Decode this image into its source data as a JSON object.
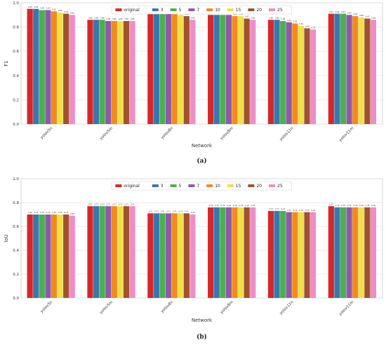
{
  "chart_data": [
    {
      "type": "bar",
      "panel_label": "(a)",
      "xlabel": "Network",
      "ylabel": "F1",
      "ylim": [
        0.0,
        1.0
      ],
      "yticks": [
        0.0,
        0.2,
        0.4,
        0.6,
        0.8,
        1.0
      ],
      "grid": true,
      "legend_position": "top-center",
      "categories": [
        "yolov5n",
        "yolov5m",
        "yolov8n",
        "yolov8m",
        "yolov11n",
        "yolov11m"
      ],
      "series": [
        {
          "name": "original",
          "color": "#d62728",
          "values": [
            0.95,
            0.86,
            0.92,
            0.9,
            0.86,
            0.91
          ],
          "labels": [
            "0.95",
            "0.86",
            "0.92",
            "0.90",
            "0.86",
            "0.91"
          ]
        },
        {
          "name": "3",
          "color": "#3a76b0",
          "values": [
            0.95,
            0.86,
            0.92,
            0.9,
            0.86,
            0.91
          ],
          "labels": [
            "0.95",
            "0.86",
            "0.92",
            "0.90",
            "0.86",
            "0.91"
          ]
        },
        {
          "name": "5",
          "color": "#4caf50",
          "values": [
            0.94,
            0.86,
            0.92,
            0.9,
            0.85,
            0.91
          ],
          "labels": [
            "0.94",
            "0.86",
            "0.92",
            "0.90",
            "0.85",
            "0.91"
          ]
        },
        {
          "name": "7",
          "color": "#8e5aa8",
          "values": [
            0.94,
            0.85,
            0.91,
            0.9,
            0.84,
            0.9
          ],
          "labels": [
            "0.94",
            "0.85",
            "0.91",
            "0.90",
            "0.84",
            "0.90"
          ]
        },
        {
          "name": "10",
          "color": "#f28a1e",
          "values": [
            0.93,
            0.85,
            0.91,
            0.89,
            0.83,
            0.89
          ],
          "labels": [
            "0.93",
            "0.85",
            "0.91",
            "0.89",
            "0.83",
            "0.89"
          ]
        },
        {
          "name": "15",
          "color": "#efe04a",
          "values": [
            0.92,
            0.85,
            0.9,
            0.89,
            0.81,
            0.88
          ],
          "labels": [
            "0.92",
            "0.85",
            "0.90",
            "0.89",
            "0.81",
            "0.88"
          ]
        },
        {
          "name": "20",
          "color": "#a0522d",
          "values": [
            0.91,
            0.85,
            0.89,
            0.87,
            0.79,
            0.87
          ],
          "labels": [
            "0.91",
            "0.85",
            "0.89",
            "0.87",
            "0.79",
            "0.87"
          ]
        },
        {
          "name": "25",
          "color": "#ee8ec4",
          "values": [
            0.9,
            0.85,
            0.86,
            0.86,
            0.78,
            0.86
          ],
          "labels": [
            "0.90",
            "0.85",
            "0.86",
            "0.86",
            "0.78",
            "0.86"
          ]
        }
      ]
    },
    {
      "type": "bar",
      "panel_label": "(b)",
      "xlabel": "Network",
      "ylabel": "IoU",
      "ylim": [
        0.0,
        1.0
      ],
      "yticks": [
        0.0,
        0.2,
        0.4,
        0.6,
        0.8,
        1.0
      ],
      "grid": true,
      "legend_position": "top-center",
      "categories": [
        "yolov5n",
        "yolov5m",
        "yolov8n",
        "yolov8m",
        "yolov11n",
        "yolov11m"
      ],
      "series": [
        {
          "name": "original",
          "color": "#d62728",
          "values": [
            0.7,
            0.77,
            0.71,
            0.76,
            0.73,
            0.77
          ],
          "labels": [
            "0.70",
            "0.77",
            "0.71",
            "0.76",
            "0.73",
            "0.77"
          ]
        },
        {
          "name": "3",
          "color": "#3a76b0",
          "values": [
            0.7,
            0.77,
            0.71,
            0.76,
            0.73,
            0.76
          ],
          "labels": [
            "0.70",
            "0.77",
            "0.71",
            "0.76",
            "0.73",
            "0.76"
          ]
        },
        {
          "name": "5",
          "color": "#4caf50",
          "values": [
            0.7,
            0.77,
            0.71,
            0.76,
            0.73,
            0.76
          ],
          "labels": [
            "0.70",
            "0.77",
            "0.71",
            "0.76",
            "0.73",
            "0.76"
          ]
        },
        {
          "name": "7",
          "color": "#8e5aa8",
          "values": [
            0.7,
            0.77,
            0.71,
            0.76,
            0.72,
            0.76
          ],
          "labels": [
            "0.70",
            "0.77",
            "0.71",
            "0.76",
            "0.72",
            "0.76"
          ]
        },
        {
          "name": "10",
          "color": "#f28a1e",
          "values": [
            0.7,
            0.77,
            0.71,
            0.76,
            0.72,
            0.76
          ],
          "labels": [
            "0.70",
            "0.77",
            "0.71",
            "0.76",
            "0.72",
            "0.76"
          ]
        },
        {
          "name": "15",
          "color": "#efe04a",
          "values": [
            0.7,
            0.77,
            0.71,
            0.76,
            0.72,
            0.76
          ],
          "labels": [
            "0.70",
            "0.77",
            "0.71",
            "0.76",
            "0.72",
            "0.76"
          ]
        },
        {
          "name": "20",
          "color": "#a0522d",
          "values": [
            0.7,
            0.77,
            0.71,
            0.76,
            0.72,
            0.76
          ],
          "labels": [
            "0.70",
            "0.77",
            "0.71",
            "0.76",
            "0.72",
            "0.76"
          ]
        },
        {
          "name": "25",
          "color": "#ee8ec4",
          "values": [
            0.69,
            0.77,
            0.7,
            0.76,
            0.72,
            0.76
          ],
          "labels": [
            "0.69",
            "0.77",
            "0.70",
            "0.76",
            "0.72",
            "0.76"
          ]
        }
      ]
    }
  ],
  "colors": {
    "plot_background": "#ffffff",
    "grid": "#e2e2e2",
    "axis_frame": "#c8c8c8"
  }
}
